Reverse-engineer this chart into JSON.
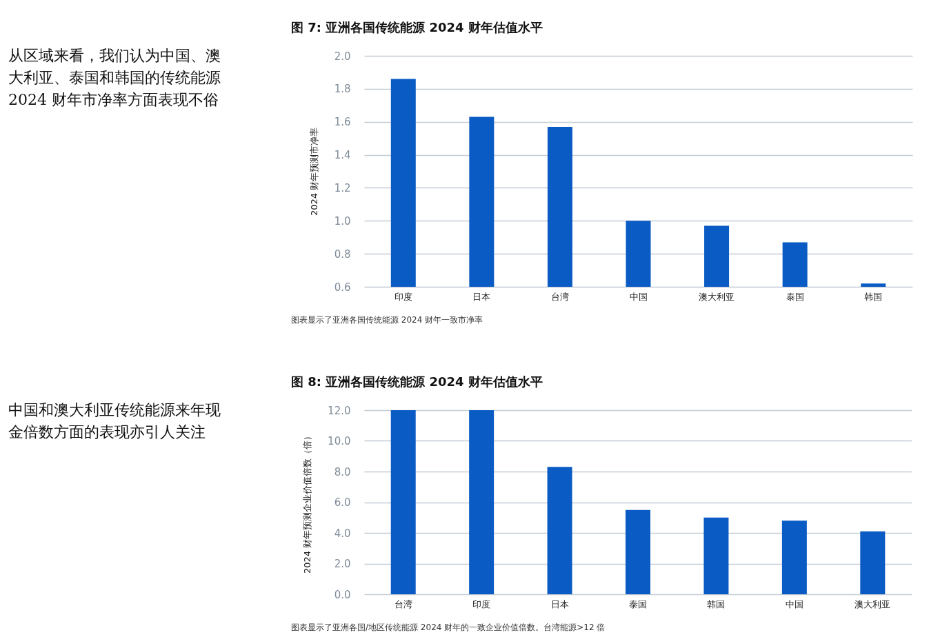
{
  "chart_data": [
    {
      "type": "bar",
      "title": "图 7:  亚洲各国传统能源 2024 财年估值水平",
      "ylabel": "2024 财年预测市净率",
      "categories": [
        "印度",
        "日本",
        "台湾",
        "中国",
        "澳大利亚",
        "泰国",
        "韩国"
      ],
      "values": [
        1.86,
        1.63,
        1.57,
        1.0,
        0.97,
        0.87,
        0.62
      ],
      "color": "#0a5bc4",
      "ylim": [
        0.6,
        2.0
      ],
      "yticks": [
        0.6,
        0.8,
        {
          "value": 1,
          "label": "1.0"
        },
        1.2,
        1.4,
        1.6,
        1.8,
        {
          "value": 2,
          "label": "2.0"
        }
      ],
      "grid": "y",
      "annotations": [
        "从区域来看，我们认为中国、澳大利亚、泰国和韩国的传统能源2024 财年市净率方面表现不俗",
        "图表显示了亚洲各国传统能源 2024 财年一致市净率"
      ]
    },
    {
      "type": "bar",
      "title": "图 8:  亚洲各国传统能源 2024 财年估值水平",
      "ylabel": "2024 财年预测企业价值倍数（倍）",
      "categories": [
        "台湾",
        "印度",
        "日本",
        "泰国",
        "韩国",
        "中国",
        "澳大利亚"
      ],
      "values": [
        12.0,
        12.0,
        8.3,
        5.5,
        5.0,
        4.8,
        4.1
      ],
      "color": "#0a5bc4",
      "ylim": [
        0,
        12
      ],
      "yticks": [
        {
          "value": 0,
          "label": "0.0"
        },
        {
          "value": 2,
          "label": "2.0"
        },
        {
          "value": 4,
          "label": "4.0"
        },
        {
          "value": 6,
          "label": "6.0"
        },
        {
          "value": 8,
          "label": "8.0"
        },
        {
          "value": 10,
          "label": "10.0"
        },
        {
          "value": 12,
          "label": "12.0"
        }
      ],
      "grid": "y",
      "annotations": [
        "中国和澳大利亚传统能源来年现金倍数方面的表现亦引人关注",
        "图表显示了亚洲各国/地区传统能源 2024 财年的一致企业价值倍数。台湾能源>12 倍"
      ]
    }
  ]
}
